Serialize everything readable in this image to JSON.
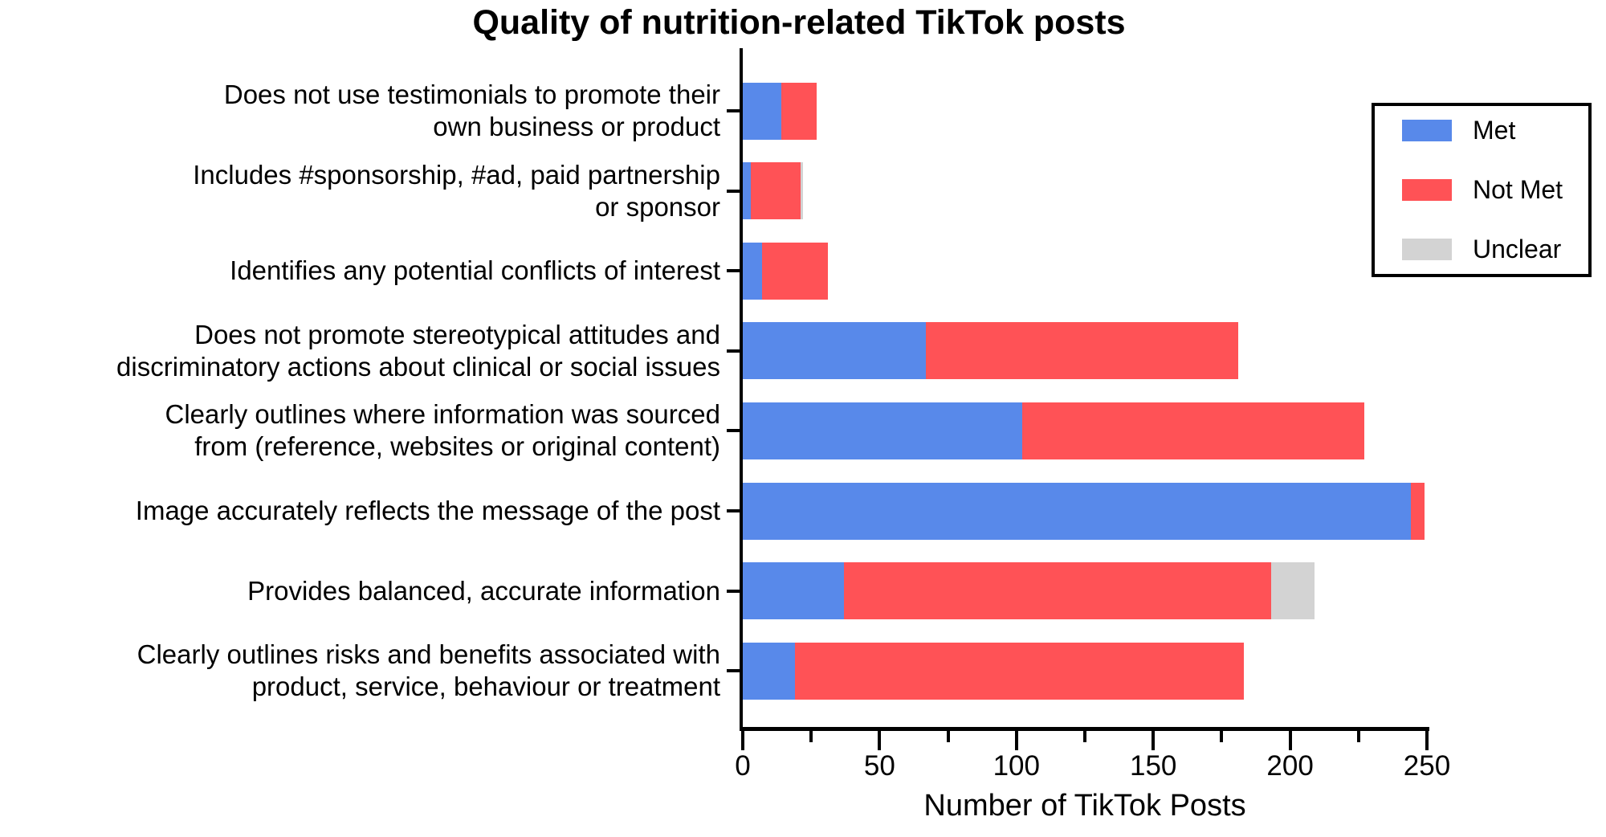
{
  "chart_data": {
    "type": "bar",
    "orientation": "horizontal",
    "stacked": true,
    "title": "Quality of nutrition-related TikTok posts",
    "xlabel": "Number of TikTok Posts",
    "xlim": [
      0,
      250
    ],
    "xticks_major": [
      0,
      50,
      100,
      150,
      200,
      250
    ],
    "xticks_minor": [
      25,
      75,
      125,
      175,
      225
    ],
    "grid": false,
    "legend_position": "top-right",
    "categories": [
      "Does not use testimonials to promote their\nown business or product",
      "Includes #sponsorship, #ad, paid partnership\nor sponsor",
      "Identifies any potential conflicts of interest",
      "Does not promote stereotypical attitudes and\ndiscriminatory actions about clinical or social issues",
      "Clearly outlines where information was sourced\nfrom (reference, websites or original content)",
      "Image accurately reflects the message of the post",
      "Provides balanced, accurate information",
      "Clearly outlines risks and benefits associated with\nproduct, service, behaviour or treatment"
    ],
    "series": [
      {
        "name": "Met",
        "color": "#5889EA",
        "values": [
          14,
          3,
          7,
          67,
          102,
          244,
          37,
          19
        ]
      },
      {
        "name": "Not Met",
        "color": "#FF5256",
        "values": [
          13,
          18,
          24,
          114,
          125,
          5,
          156,
          164
        ]
      },
      {
        "name": "Unclear",
        "color": "#D3D3D3",
        "values": [
          0,
          1,
          0,
          0,
          0,
          0,
          16,
          0
        ]
      }
    ]
  }
}
